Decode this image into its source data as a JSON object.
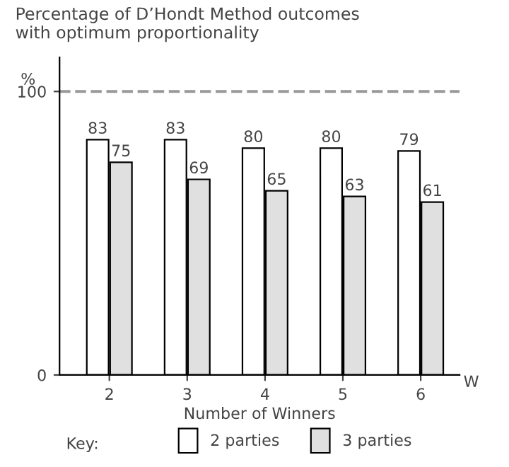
{
  "chart_data": {
    "type": "bar",
    "title": "Percentage of D’Hondt Method outcomes\nwith optimum proportionality",
    "xlabel": "Number of Winners",
    "ylabel": "%",
    "legend_title": "Key:",
    "annotations": [
      "W"
    ],
    "categories": [
      "2",
      "3",
      "4",
      "5",
      "6"
    ],
    "series": [
      {
        "name": "2 parties",
        "color": "#ffffff",
        "values": [
          83,
          83,
          80,
          80,
          79
        ]
      },
      {
        "name": "3 parties",
        "color": "#e0e0e0",
        "values": [
          75,
          69,
          65,
          63,
          61
        ]
      }
    ],
    "ylim": [
      0,
      112
    ],
    "yticks": [
      0,
      100
    ],
    "ref_lines": [
      {
        "axis": "y",
        "value": 100,
        "color": "#999999",
        "line_style": "dashed"
      }
    ],
    "data_labels": true,
    "grid": false,
    "legend": "bottom"
  }
}
